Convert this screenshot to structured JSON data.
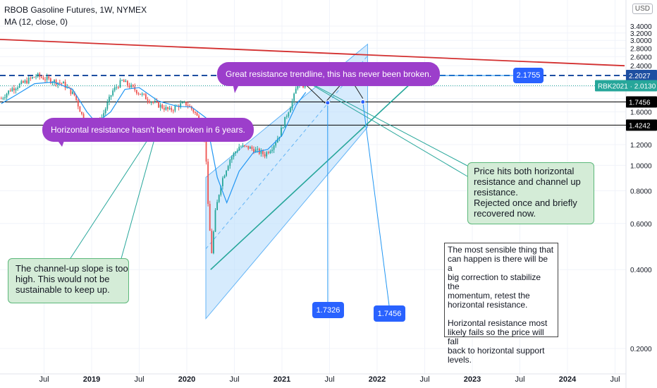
{
  "header": {
    "symbol_line": "RBOB Gasoline Futures, 1W, NYMEX",
    "indicator_line": "MA (12, close, 0)"
  },
  "currency": "USD",
  "price_labels": {
    "horizontal_resistance": "2.2027",
    "last_price": "RBK2021 · 2.0130",
    "support_1": "1.7456",
    "support_2": "1.4242"
  },
  "callouts": {
    "great_resistance": "Great resistance trendline, this has never been broken.",
    "horizontal_resistance": "Horizontal resistance hasn't been broken in 6 years.",
    "price_hits": "Price hits both horizontal\nresistance and channel up\nresistance.\nRejected once and briefly\nrecovered now.",
    "channel_slope": "The channel-up slope is too\nhigh. This would not be\nsustainable to keep up.",
    "sensible": "The most sensible thing that\ncan happen is there will be a\nbig correction to stabilize the\nmomentum, retest the\nhorizontal resistance.\n\nHorizontal resistance most\nlikely fails so the price will fall\nback to horizontal support\nlevels."
  },
  "target_labels": {
    "upper": "2.1755",
    "lower_left": "1.7326",
    "lower_right": "1.7456"
  },
  "colors": {
    "up": "#26a69a",
    "down": "#ef5350",
    "ma": "#2196f3",
    "resistance": "#d32f2f",
    "callout_purple": "#9c3ecb",
    "channel_fill": "#bbdefb",
    "accent_blue": "#2962ff",
    "support_line": "#000000",
    "dashed_resistance": "#1e4fa1"
  },
  "chart_data": {
    "type": "candlestick",
    "title": "RBOB Gasoline Futures, 1W, NYMEX",
    "x_axis": {
      "ticks": [
        "Jul",
        "2019",
        "Jul",
        "2020",
        "Jul",
        "2021",
        "Jul",
        "2022",
        "Jul",
        "2023",
        "Jul",
        "2024",
        "Jul"
      ],
      "ticks_t": [
        2018.5,
        2019.0,
        2019.5,
        2020.0,
        2020.5,
        2021.0,
        2021.5,
        2022.0,
        2022.5,
        2023.0,
        2023.5,
        2024.0,
        2024.5
      ]
    },
    "y_axis": {
      "ticks": [
        "0.2000",
        "0.4000",
        "0.6000",
        "0.8000",
        "1.0000",
        "1.2000",
        "1.4000",
        "1.6000",
        "1.8000",
        "2.0000",
        "2.2000",
        "2.4000",
        "2.6000",
        "2.8000",
        "3.0000",
        "3.2000",
        "3.4000"
      ],
      "range": [
        0.05,
        4.5
      ],
      "scale": "log"
    },
    "price_path": [
      [
        2018.05,
        1.8
      ],
      [
        2018.15,
        1.95
      ],
      [
        2018.3,
        2.08
      ],
      [
        2018.42,
        2.2
      ],
      [
        2018.55,
        2.12
      ],
      [
        2018.7,
        2.05
      ],
      [
        2018.82,
        1.85
      ],
      [
        2018.92,
        1.48
      ],
      [
        2018.98,
        1.35
      ],
      [
        2019.1,
        1.5
      ],
      [
        2019.22,
        1.92
      ],
      [
        2019.32,
        2.1
      ],
      [
        2019.45,
        1.95
      ],
      [
        2019.58,
        1.8
      ],
      [
        2019.7,
        1.7
      ],
      [
        2019.82,
        1.62
      ],
      [
        2019.92,
        1.7
      ],
      [
        2020.0,
        1.72
      ],
      [
        2020.08,
        1.6
      ],
      [
        2020.16,
        1.42
      ],
      [
        2020.2,
        1.15
      ],
      [
        2020.22,
        0.72
      ],
      [
        2020.26,
        0.46
      ],
      [
        2020.3,
        0.66
      ],
      [
        2020.36,
        0.86
      ],
      [
        2020.45,
        1.05
      ],
      [
        2020.55,
        1.18
      ],
      [
        2020.65,
        1.17
      ],
      [
        2020.72,
        1.14
      ],
      [
        2020.82,
        1.1
      ],
      [
        2020.9,
        1.18
      ],
      [
        2020.97,
        1.3
      ],
      [
        2021.05,
        1.56
      ],
      [
        2021.12,
        1.8
      ],
      [
        2021.18,
        2.15
      ],
      [
        2021.21,
        2.02
      ],
      [
        2021.25,
        2.013
      ]
    ],
    "moving_average": {
      "name": "MA (12, close, 0)",
      "path": [
        [
          2018.05,
          1.72
        ],
        [
          2018.2,
          1.85
        ],
        [
          2018.4,
          2.05
        ],
        [
          2018.6,
          2.08
        ],
        [
          2018.8,
          1.95
        ],
        [
          2018.95,
          1.6
        ],
        [
          2019.05,
          1.45
        ],
        [
          2019.2,
          1.6
        ],
        [
          2019.35,
          1.95
        ],
        [
          2019.5,
          1.98
        ],
        [
          2019.7,
          1.76
        ],
        [
          2019.9,
          1.68
        ],
        [
          2020.05,
          1.67
        ],
        [
          2020.2,
          1.52
        ],
        [
          2020.32,
          0.9
        ],
        [
          2020.42,
          0.72
        ],
        [
          2020.55,
          0.95
        ],
        [
          2020.7,
          1.12
        ],
        [
          2020.85,
          1.15
        ],
        [
          2021.0,
          1.3
        ],
        [
          2021.15,
          1.7
        ],
        [
          2021.25,
          1.9
        ]
      ]
    },
    "annotations": {
      "horizontal_resistance": 2.2027,
      "supports": [
        1.7456,
        1.4242
      ],
      "last_price": 2.013,
      "targets": [
        2.1755,
        1.7326,
        1.7456
      ],
      "long_resistance_trendline": [
        [
          2017.8,
          3.05
        ],
        [
          2024.6,
          2.4
        ]
      ],
      "channel_upper": [
        [
          2020.2,
          0.9
        ],
        [
          2021.9,
          2.9
        ]
      ],
      "channel_lower": [
        [
          2020.2,
          0.26
        ],
        [
          2021.9,
          1.4
        ]
      ],
      "lower_trendline": [
        [
          2020.25,
          0.4
        ],
        [
          2022.35,
          2.05
        ]
      ]
    }
  }
}
